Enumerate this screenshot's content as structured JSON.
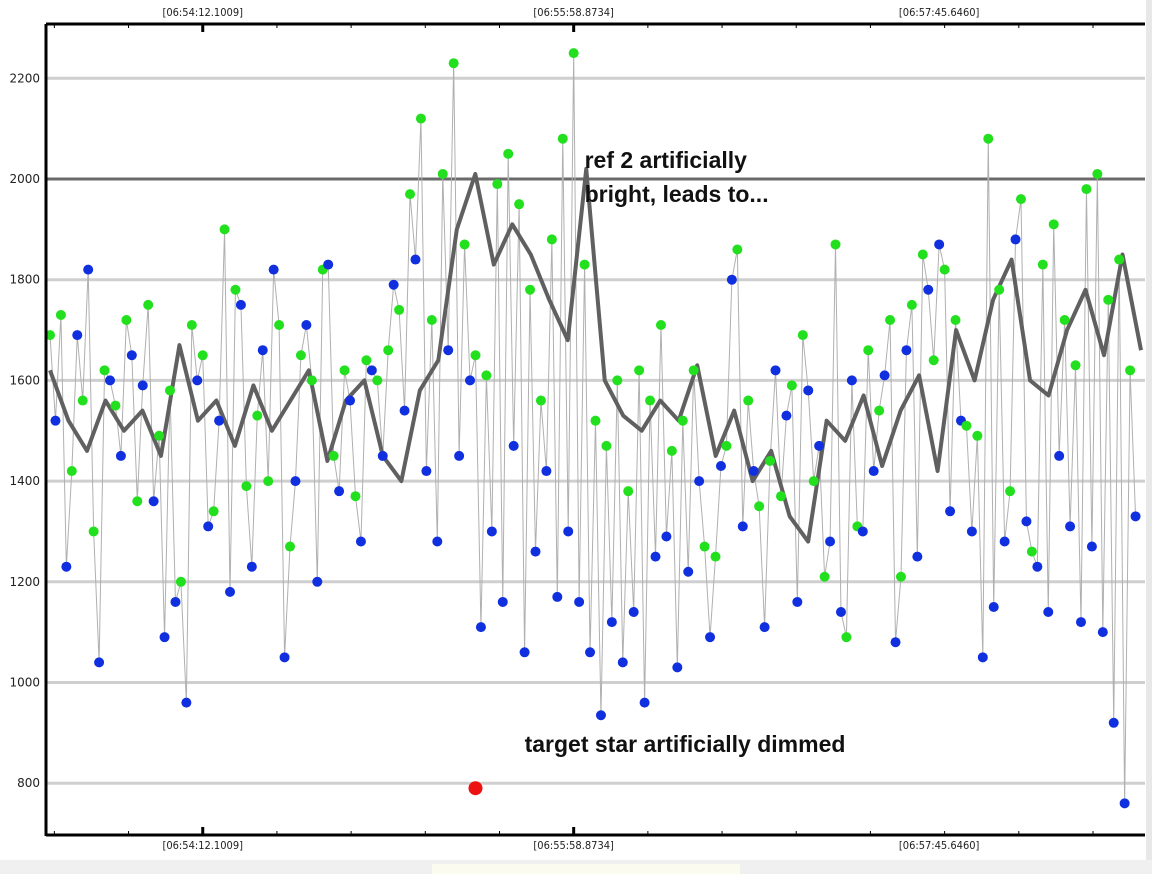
{
  "chart_data": {
    "type": "scatter",
    "title": "",
    "xlabel": "",
    "ylabel": "",
    "x_range": [
      0,
      100
    ],
    "ylim": [
      697,
      2310
    ],
    "y_ticks": [
      800,
      1000,
      1200,
      1400,
      1600,
      1800,
      2000,
      2200
    ],
    "y_tick_labels": [
      "800",
      "1000",
      "1200",
      "1400",
      "1600",
      "1800",
      "2000",
      "2200"
    ],
    "x_ticks": [
      {
        "x": 14,
        "label": "[06:54:12.1009]"
      },
      {
        "x": 48,
        "label": "[06:55:58.8734]"
      },
      {
        "x": 81.5,
        "label": "[06:57:45.6460]"
      }
    ],
    "grid": true,
    "series": [
      {
        "name": "ref-green",
        "color": "#22e01e",
        "values": [
          1690,
          1730,
          1420,
          1560,
          1300,
          1620,
          1550,
          1720,
          1360,
          1750,
          1490,
          1580,
          1200,
          1710,
          1650,
          1340,
          1900,
          1780,
          1390,
          1530,
          1400,
          1710,
          1270,
          1650,
          1600,
          1820,
          1450,
          1620,
          1370,
          1640,
          1600,
          1660,
          1740,
          1970,
          2120,
          1720,
          2010,
          2230,
          1870,
          1650,
          1610,
          1990,
          2050,
          1950,
          1780,
          1560,
          1880,
          2080,
          2250,
          1830,
          1520,
          1470,
          1600,
          1380,
          1620,
          1560,
          1710,
          1460,
          1520,
          1620,
          1270,
          1250,
          1470,
          1860,
          1560,
          1350,
          1440,
          1370,
          1590,
          1690,
          1400,
          1210,
          1870,
          1090,
          1310,
          1660,
          1540,
          1720,
          1210,
          1750,
          1850,
          1640,
          1820,
          1720,
          1510,
          1490,
          2080,
          1780,
          1380,
          1960,
          1260,
          1830,
          1910,
          1720,
          1630,
          1980,
          2010,
          1760,
          1840,
          1620
        ]
      },
      {
        "name": "ref-blue",
        "color": "#1030e0",
        "values": [
          1520,
          1230,
          1690,
          1820,
          1040,
          1600,
          1450,
          1650,
          1590,
          1360,
          1090,
          1160,
          960,
          1600,
          1310,
          1520,
          1180,
          1750,
          1230,
          1660,
          1820,
          1050,
          1400,
          1710,
          1200,
          1830,
          1380,
          1560,
          1280,
          1620,
          1450,
          1790,
          1540,
          1840,
          1420,
          1280,
          1660,
          1450,
          1600,
          1110,
          1300,
          1160,
          1470,
          1060,
          1260,
          1420,
          1170,
          1300,
          1160,
          1060,
          935,
          1120,
          1040,
          1140,
          960,
          1250,
          1290,
          1030,
          1220,
          1400,
          1090,
          1430,
          1800,
          1310,
          1420,
          1110,
          1620,
          1530,
          1160,
          1580,
          1470,
          1280,
          1140,
          1600,
          1300,
          1420,
          1610,
          1080,
          1660,
          1250,
          1780,
          1870,
          1340,
          1520,
          1300,
          1050,
          1150,
          1280,
          1880,
          1320,
          1230,
          1140,
          1450,
          1310,
          1120,
          1270,
          1100,
          920,
          760,
          1330
        ]
      },
      {
        "name": "moving-average",
        "color": "#606060",
        "values": [
          1620,
          1520,
          1460,
          1560,
          1500,
          1540,
          1450,
          1670,
          1520,
          1560,
          1470,
          1590,
          1500,
          1560,
          1620,
          1440,
          1560,
          1600,
          1450,
          1400,
          1580,
          1640,
          1900,
          2010,
          1830,
          1910,
          1850,
          1760,
          1680,
          2020,
          1600,
          1530,
          1500,
          1560,
          1520,
          1630,
          1450,
          1540,
          1400,
          1460,
          1330,
          1280,
          1520,
          1480,
          1570,
          1430,
          1540,
          1610,
          1420,
          1700,
          1600,
          1760,
          1840,
          1600,
          1570,
          1700,
          1780,
          1650,
          1850,
          1660
        ]
      }
    ],
    "highlight_point": {
      "name": "target-dimmed",
      "color": "#ee1111",
      "x": 39,
      "y": 790
    },
    "annotations": [
      {
        "lines": [
          "ref 2 artificially",
          "bright, leads to..."
        ],
        "x": 49,
        "y": 2000
      },
      {
        "lines": [
          "target star artificially dimmed"
        ],
        "x": 43.5,
        "y": 840
      }
    ]
  }
}
